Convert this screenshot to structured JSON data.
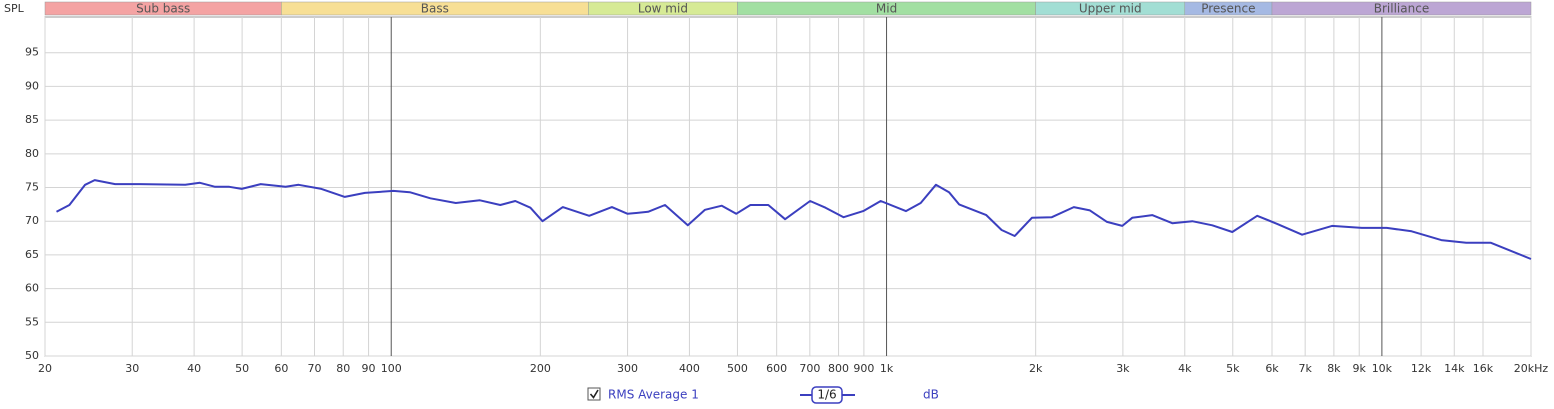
{
  "chart_data": {
    "type": "line",
    "y_label": "SPL",
    "xscale": "log",
    "xlim": [
      20,
      20000
    ],
    "ylim": [
      50,
      100.3
    ],
    "grid": true,
    "xticks": [
      20,
      30,
      40,
      50,
      60,
      70,
      80,
      90,
      100,
      200,
      300,
      400,
      500,
      600,
      700,
      800,
      900,
      {
        "value": 1000,
        "label": "1k"
      },
      {
        "value": 2000,
        "label": "2k"
      },
      {
        "value": 3000,
        "label": "3k"
      },
      {
        "value": 4000,
        "label": "4k"
      },
      {
        "value": 5000,
        "label": "5k"
      },
      {
        "value": 6000,
        "label": "6k"
      },
      {
        "value": 7000,
        "label": "7k"
      },
      {
        "value": 8000,
        "label": "8k"
      },
      {
        "value": 9000,
        "label": "9k"
      },
      {
        "value": 10000,
        "label": "10k"
      },
      {
        "value": 12000,
        "label": "12k"
      },
      {
        "value": 14000,
        "label": "14k"
      },
      {
        "value": 16000,
        "label": "16k"
      },
      {
        "value": 20000,
        "label": "20kHz"
      }
    ],
    "yticks": [
      50,
      55,
      60,
      65,
      70,
      75,
      80,
      85,
      90,
      95
    ],
    "bands": [
      {
        "label": "Sub bass",
        "start": 20,
        "end": 60,
        "color": "#f4a3a3"
      },
      {
        "label": "Bass",
        "start": 60,
        "end": 250,
        "color": "#f7df95"
      },
      {
        "label": "Low mid",
        "start": 250,
        "end": 500,
        "color": "#d6ea95"
      },
      {
        "label": "Mid",
        "start": 500,
        "end": 2000,
        "color": "#a2dfa2"
      },
      {
        "label": "Upper mid",
        "start": 2000,
        "end": 4000,
        "color": "#a2ded4"
      },
      {
        "label": "Presence",
        "start": 4000,
        "end": 6000,
        "color": "#a5b9e3"
      },
      {
        "label": "Brilliance",
        "start": 6000,
        "end": 20000,
        "color": "#bca6d4"
      }
    ],
    "smoothing": "1/6",
    "unit": "dB",
    "x": [
      21.1,
      22.4,
      24.1,
      25.2,
      27.7,
      31.1,
      38.4,
      41.1,
      44.1,
      47.1,
      49.9,
      54.5,
      61.2,
      65,
      72.3,
      80.6,
      88.5,
      101,
      109,
      120,
      135,
      151,
      166,
      178,
      191,
      202,
      222,
      251,
      279,
      300,
      330,
      357,
      397,
      430,
      465,
      497,
      531,
      577,
      624,
      701,
      753,
      819,
      897,
      973,
      1094,
      1172,
      1258,
      1337,
      1401,
      1590,
      1707,
      1814,
      1965,
      2156,
      2388,
      2573,
      2787,
      2992,
      3133,
      3438,
      3775,
      4143,
      4547,
      4990,
      5601,
      6148,
      6900,
      7930,
      9110,
      10230,
      11480,
      13180,
      14800,
      16600,
      20000
    ],
    "series": [
      {
        "name": "RMS Average 1",
        "color": "#3b3fbf",
        "values": [
          71.4,
          72.4,
          75.4,
          76.1,
          75.5,
          75.5,
          75.4,
          75.7,
          75.1,
          75.1,
          74.8,
          75.5,
          75.1,
          75.4,
          74.8,
          73.6,
          74.2,
          74.5,
          74.3,
          73.4,
          72.7,
          73.1,
          72.4,
          73.0,
          72.0,
          70.0,
          72.1,
          70.8,
          72.1,
          71.1,
          71.4,
          72.4,
          69.4,
          71.7,
          72.3,
          71.1,
          72.4,
          72.4,
          70.3,
          73.0,
          72.0,
          70.6,
          71.5,
          73.0,
          71.5,
          72.7,
          75.4,
          74.3,
          72.5,
          70.9,
          68.7,
          67.8,
          70.5,
          70.6,
          72.1,
          71.6,
          69.9,
          69.3,
          70.5,
          70.9,
          69.7,
          70.0,
          69.4,
          68.4,
          70.8,
          69.6,
          68.0,
          69.3,
          69.0,
          69.0,
          68.5,
          67.2,
          66.8,
          66.8,
          64.4
        ]
      }
    ]
  }
}
